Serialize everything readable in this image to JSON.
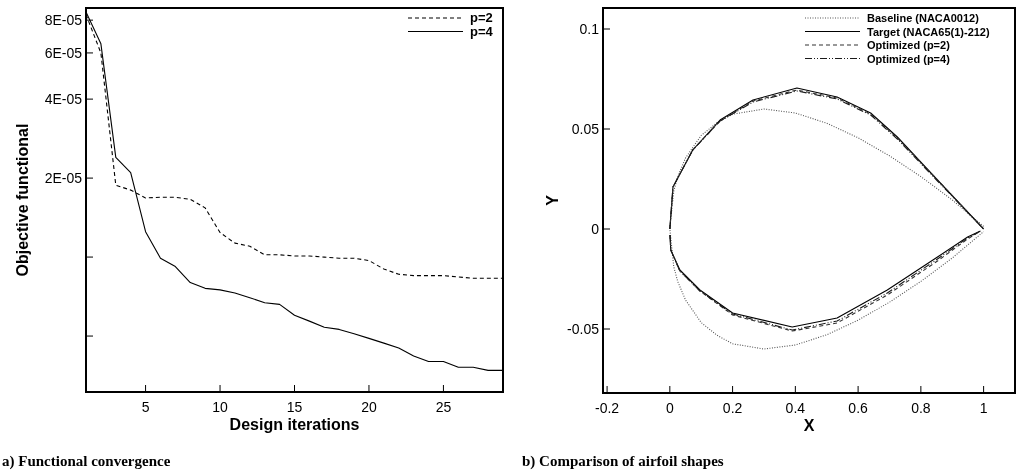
{
  "chart_data": [
    {
      "type": "line",
      "title": "a) Functional convergence",
      "xlabel": "Design iterations",
      "ylabel": "Objective functional",
      "log": "y",
      "legend": "top right",
      "grid": false,
      "xlim": [
        1,
        29
      ],
      "ylim": [
        3.06e-06,
        8.9e-05
      ],
      "xticks": [
        5,
        10,
        15,
        20,
        25
      ],
      "yticks": [
        {
          "value": 8e-05,
          "label": "8E-05"
        },
        {
          "value": 6e-05,
          "label": "6E-05"
        },
        {
          "value": 4e-05,
          "label": "4E-05"
        },
        {
          "value": 2e-05,
          "label": "2E-05"
        },
        {
          "value": 1e-05,
          "label": null
        },
        {
          "value": 5e-06,
          "label": null
        }
      ],
      "x": [
        1,
        2,
        3,
        4,
        5,
        6,
        7,
        8,
        9,
        10,
        11,
        12,
        13,
        14,
        15,
        16,
        17,
        18,
        19,
        20,
        21,
        22,
        23,
        24,
        25,
        26,
        27,
        28,
        29
      ],
      "series": [
        {
          "name": "p=2",
          "color": "#000000",
          "line_style": "dashed",
          "values": [
            8.4e-05,
            6e-05,
            1.88e-05,
            1.8e-05,
            1.68e-05,
            1.69e-05,
            1.69e-05,
            1.66e-05,
            1.54e-05,
            1.24e-05,
            1.13e-05,
            1.1e-05,
            1.02e-05,
            1.02e-05,
            1.01e-05,
            1.01e-05,
            1e-05,
            9.9e-06,
            9.9e-06,
            9.7e-06,
            9e-06,
            8.6e-06,
            8.5e-06,
            8.5e-06,
            8.5e-06,
            8.4e-06,
            8.3e-06,
            8.3e-06,
            8.3e-06
          ]
        },
        {
          "name": "p=4",
          "color": "#000000",
          "line_style": "solid",
          "values": [
            8.6e-05,
            6.5e-05,
            2.4e-05,
            2.1e-05,
            1.25e-05,
            9.9e-06,
            9.2e-06,
            8e-06,
            7.6e-06,
            7.5e-06,
            7.3e-06,
            7e-06,
            6.7e-06,
            6.6e-06,
            6e-06,
            5.7e-06,
            5.4e-06,
            5.3e-06,
            5.1e-06,
            4.9e-06,
            4.7e-06,
            4.5e-06,
            4.2e-06,
            4e-06,
            4e-06,
            3.8e-06,
            3.8e-06,
            3.7e-06,
            3.7e-06
          ]
        }
      ]
    },
    {
      "type": "line",
      "title": "b) Comparison of airfoil shapes",
      "xlabel": "X",
      "ylabel": "Y",
      "legend": "top right",
      "grid": false,
      "xlim": [
        -0.213,
        1.1
      ],
      "ylim": [
        -0.082,
        0.1105
      ],
      "xticks": [
        -0.2,
        0,
        0.2,
        0.4,
        0.6,
        0.8,
        1
      ],
      "yticks": [
        -0.05,
        0,
        0.05,
        0.1
      ],
      "series": [
        {
          "name": "Baseline (NACA0012)",
          "color": "#555555",
          "line_style": "dotted",
          "x": [
            1,
            0.9,
            0.8,
            0.7,
            0.6,
            0.5,
            0.4,
            0.3,
            0.2,
            0.15,
            0.1,
            0.05,
            0.025,
            0.0125,
            0,
            0.0125,
            0.025,
            0.05,
            0.1,
            0.15,
            0.2,
            0.3,
            0.4,
            0.5,
            0.6,
            0.7,
            0.8,
            0.9,
            1
          ],
          "values": [
            0.0013,
            0.0145,
            0.0262,
            0.0366,
            0.0456,
            0.0529,
            0.058,
            0.06,
            0.0574,
            0.0531,
            0.0468,
            0.0355,
            0.0262,
            0.0189,
            0,
            -0.0189,
            -0.0262,
            -0.0355,
            -0.0468,
            -0.0531,
            -0.0574,
            -0.06,
            -0.058,
            -0.0529,
            -0.0456,
            -0.0366,
            -0.0262,
            -0.0145,
            -0.0013
          ]
        },
        {
          "name": "Target (NACA65(1)-212)",
          "color": "#000000",
          "line_style": "solid",
          "x": [
            0,
            0.01,
            0.073,
            0.16,
            0.265,
            0.405,
            0.533,
            0.64,
            0.725,
            0.853,
            1
          ],
          "values": [
            0,
            0.021,
            0.0395,
            0.0545,
            0.0645,
            0.0705,
            0.066,
            0.058,
            0.046,
            0.0245,
            0
          ]
        },
        {
          "color": "#000000",
          "line_style": "solid",
          "x": [
            0.0005,
            0.003,
            0.032,
            0.096,
            0.2,
            0.39,
            0.533,
            0.693,
            0.853,
            0.949,
            0.99
          ],
          "values": [
            -0.003,
            -0.0105,
            -0.0205,
            -0.0305,
            -0.042,
            -0.049,
            -0.0445,
            -0.0305,
            -0.014,
            -0.004,
            -0.001
          ]
        },
        {
          "name": "Optimized (p=2)",
          "color": "#333333",
          "line_style": "dashed",
          "x": [
            0,
            0.01,
            0.073,
            0.16,
            0.265,
            0.405,
            0.533,
            0.64,
            0.725,
            0.853,
            1
          ],
          "values": [
            0,
            0.021,
            0.0395,
            0.054,
            0.064,
            0.0695,
            0.0655,
            0.0575,
            0.0455,
            0.0245,
            0
          ]
        },
        {
          "color": "#333333",
          "line_style": "dashed",
          "x": [
            0.0005,
            0.003,
            0.032,
            0.096,
            0.2,
            0.39,
            0.533,
            0.693,
            0.853,
            0.949,
            0.99
          ],
          "values": [
            -0.003,
            -0.0105,
            -0.021,
            -0.031,
            -0.043,
            -0.051,
            -0.047,
            -0.033,
            -0.016,
            -0.005,
            -0.001
          ]
        },
        {
          "name": "Optimized (p=4)",
          "color": "#1a1a1a",
          "line_style": "dashdot",
          "x": [
            0,
            0.01,
            0.073,
            0.16,
            0.265,
            0.405,
            0.533,
            0.64,
            0.725,
            0.853,
            1
          ],
          "values": [
            0,
            0.021,
            0.0395,
            0.054,
            0.0635,
            0.069,
            0.065,
            0.057,
            0.045,
            0.024,
            0
          ]
        },
        {
          "color": "#1a1a1a",
          "line_style": "dashdot",
          "x": [
            0.0005,
            0.003,
            0.032,
            0.096,
            0.2,
            0.39,
            0.533,
            0.693,
            0.853,
            0.949,
            0.99
          ],
          "values": [
            -0.003,
            -0.0105,
            -0.021,
            -0.031,
            -0.0425,
            -0.0505,
            -0.046,
            -0.032,
            -0.015,
            -0.0045,
            -0.001
          ]
        }
      ]
    }
  ]
}
